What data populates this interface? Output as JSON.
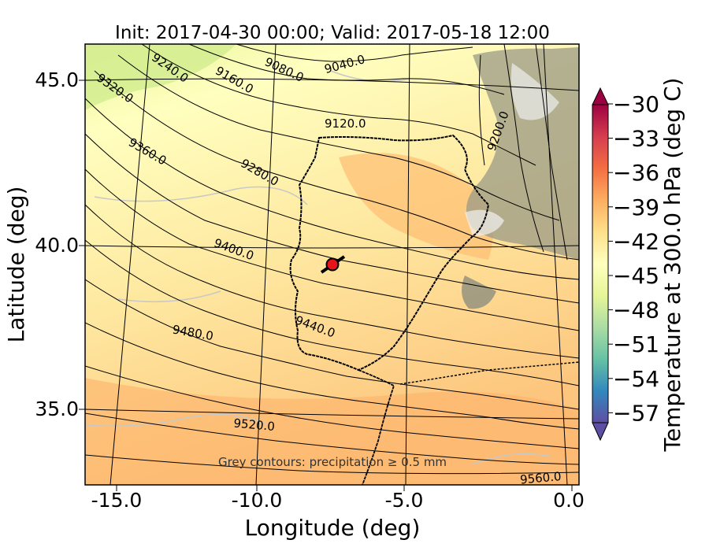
{
  "title": "Init: 2017-04-30 00:00; Valid: 2017-05-18 12:00",
  "x_axis": {
    "label": "Longitude (deg)",
    "ticks": [
      "-15.0",
      "-10.0",
      "-5.0",
      "0.0"
    ]
  },
  "y_axis": {
    "label": "Latitude (deg)",
    "ticks": [
      "45.0",
      "40.0",
      "35.0"
    ]
  },
  "colorbar": {
    "label": "Temperature at 300.0 hPa (deg C)",
    "ticks": [
      "−30",
      "−33",
      "−36",
      "−39",
      "−42",
      "−45",
      "−48",
      "−51",
      "−54",
      "−57"
    ],
    "colormap": [
      "#5e4fa2",
      "#3288bd",
      "#66c2a5",
      "#abdda4",
      "#e6f598",
      "#ffffbf",
      "#fee08b",
      "#fdae61",
      "#f46d43",
      "#d53e4f",
      "#9e0142"
    ],
    "extend": "both"
  },
  "contour_labels": [
    "9040.0",
    "9080.0",
    "9120.0",
    "9160.0",
    "9200.0",
    "9240.0",
    "9280.0",
    "9320.0",
    "9360.0",
    "9400.0",
    "9440.0",
    "9480.0",
    "9520.0",
    "9560.0"
  ],
  "note": "Grey contours: precipitation ≥ 0.5 mm",
  "marker": {
    "color": "#e8131b",
    "label": "station-marker"
  },
  "chart_data": {
    "type": "contour-map",
    "title": "Init: 2017-04-30 00:00; Valid: 2017-05-18 12:00",
    "xlabel": "Longitude (deg)",
    "ylabel": "Latitude (deg)",
    "xlim": [
      -15.8,
      0.3
    ],
    "ylim": [
      32.5,
      46.1
    ],
    "field": "Temperature at 300.0 hPa (deg C)",
    "color_range": [
      -57,
      -30
    ],
    "height_contours": [
      9040,
      9080,
      9120,
      9160,
      9200,
      9240,
      9280,
      9320,
      9360,
      9400,
      9440,
      9480,
      9520,
      9560
    ],
    "marker_location": [
      -7.6,
      39.3
    ]
  }
}
